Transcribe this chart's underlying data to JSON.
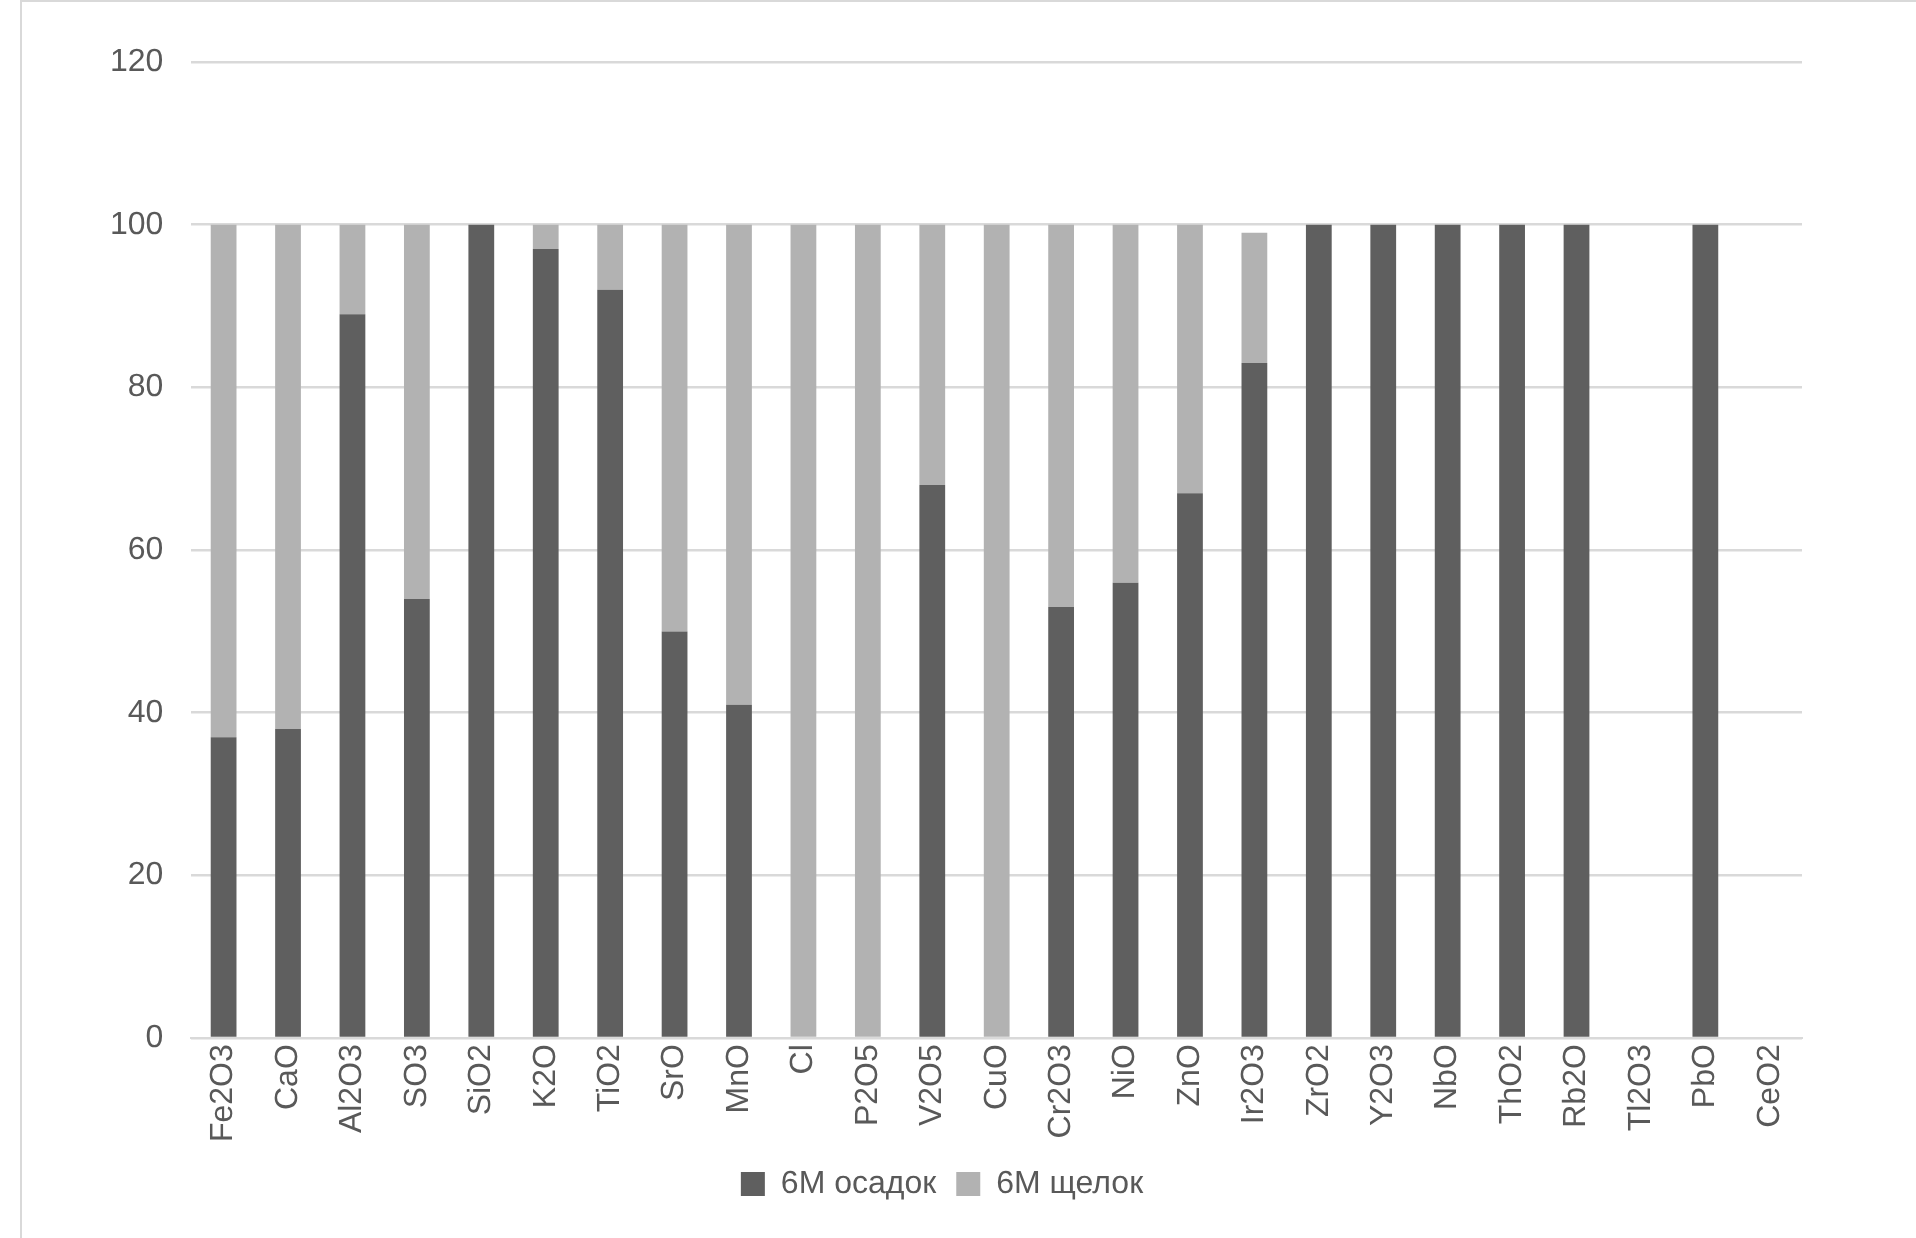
{
  "chart_data": {
    "type": "bar",
    "stacked": true,
    "categories": [
      "Fe2O3",
      "CaO",
      "Al2O3",
      "SO3",
      "SiO2",
      "K2O",
      "TiO2",
      "SrO",
      "MnO",
      "Cl",
      "P2O5",
      "V2O5",
      "CuO",
      "Cr2O3",
      "NiO",
      "ZnO",
      "Ir2O3",
      "ZrO2",
      "Y2O3",
      "NbO",
      "ThO2",
      "Rb2O",
      "Tl2O3",
      "PbO",
      "CeO2"
    ],
    "series": [
      {
        "name": "6M осадок",
        "color": "#5f5f5f",
        "values": [
          37,
          38,
          89,
          54,
          100,
          97,
          92,
          50,
          41,
          0,
          0,
          68,
          0,
          53,
          56,
          67,
          83,
          100,
          100,
          100,
          100,
          100,
          0,
          100,
          0
        ]
      },
      {
        "name": "6M щелок",
        "color": "#b2b2b2",
        "values": [
          63,
          62,
          11,
          46,
          0,
          3,
          8,
          50,
          59,
          100,
          100,
          32,
          100,
          47,
          44,
          33,
          16,
          0,
          0,
          0,
          0,
          0,
          0,
          0,
          0
        ]
      }
    ],
    "ylim": [
      0,
      120
    ],
    "yticks": [
      0,
      20,
      40,
      60,
      80,
      100,
      120
    ],
    "grid": "y",
    "legend": "bottom"
  }
}
